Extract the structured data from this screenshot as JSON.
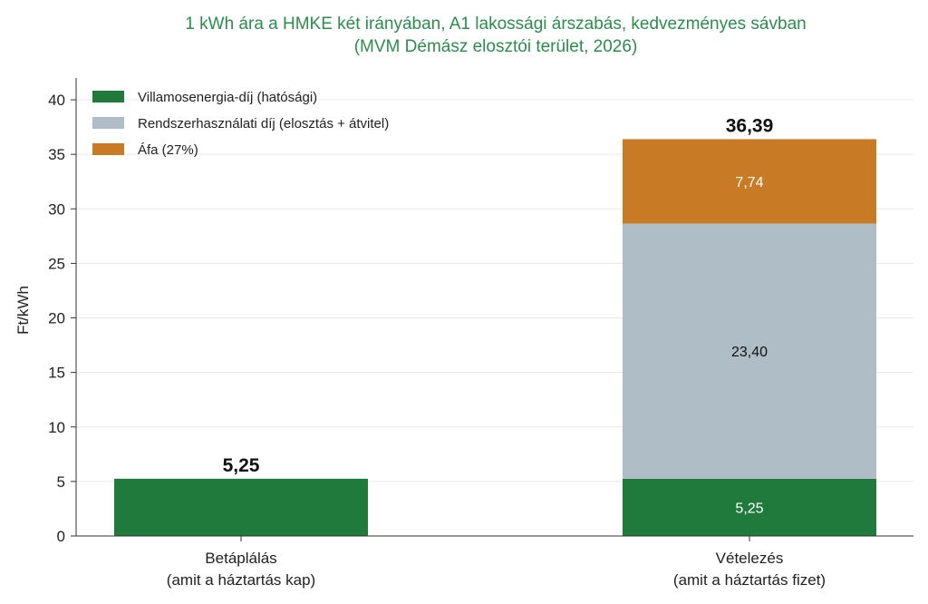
{
  "chart_data": {
    "type": "bar",
    "stacked": true,
    "title_line1": "1 kWh ára a HMKE két irányában, A1 lakossági árszabás, kedvezményes sávban",
    "title_line2": "(MVM Démász elosztói terület, 2026)",
    "ylabel": "Ft/kWh",
    "xlabel": "",
    "ylim": [
      0,
      42
    ],
    "yticks": [
      0,
      5,
      10,
      15,
      20,
      25,
      30,
      35,
      40
    ],
    "grid": true,
    "legend_position": "top-left",
    "categories": [
      {
        "line1": "Betáplálás",
        "line2": "(amit a háztartás kap)"
      },
      {
        "line1": "Vételezés",
        "line2": "(amit a háztartás fizet)"
      }
    ],
    "series": [
      {
        "name": "Villamosenergia-díj (hatósági)",
        "color": "#207a3c",
        "values": [
          5.25,
          5.25
        ],
        "labels": [
          "",
          "5,25"
        ],
        "label_color": "#ffffff"
      },
      {
        "name": "Rendszerhasználati díj (elosztás + átvitel)",
        "color": "#afbec6",
        "values": [
          0,
          23.4
        ],
        "labels": [
          "",
          "23,40"
        ],
        "label_color": "#111111"
      },
      {
        "name": "Áfa (27%)",
        "color": "#c87b24",
        "values": [
          0,
          7.74
        ],
        "labels": [
          "",
          "7,74"
        ],
        "label_color": "#ffffff"
      }
    ],
    "totals": [
      {
        "value": 5.25,
        "label": "5,25"
      },
      {
        "value": 36.39,
        "label": "36,39"
      }
    ]
  }
}
